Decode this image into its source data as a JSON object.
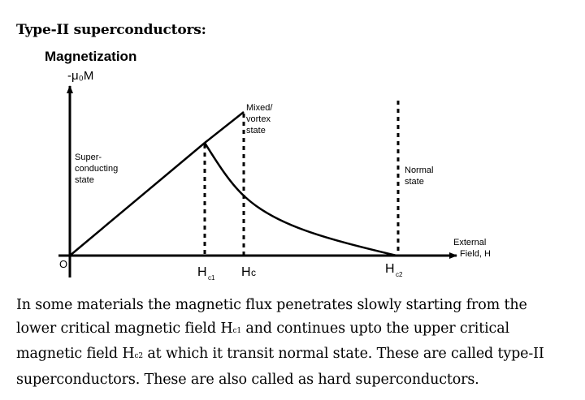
{
  "heading": "Type-II superconductors:",
  "diagram": {
    "title": "Magnetization",
    "y_axis_label": "-μ₀M",
    "x_axis_label_line1": "External",
    "x_axis_label_line2": "Field, H",
    "origin_label": "O",
    "regions": {
      "superconducting": [
        "Super-",
        "conducting",
        "state"
      ],
      "mixed": [
        "Mixed/",
        "vortex",
        "state"
      ],
      "normal": [
        "Normal",
        "state"
      ]
    },
    "ticks": {
      "hc1_main": "H",
      "hc1_sub": "c1",
      "hc_main": "H",
      "hc_sub": "c",
      "hc2_main": "H",
      "hc2_sub": "c2"
    },
    "line_color": "#000000"
  },
  "paragraph": {
    "line1": "In some materials the magnetic flux penetrates slowly starting from the",
    "line2_a": "lower critical magnetic field H",
    "line2_sub": "c1",
    "line2_b": " and continues upto the upper critical",
    "line3_a": "magnetic field H",
    "line3_sub": "c2",
    "line3_b": " at which it transit normal state. These are called type-II",
    "line4": "superconductors. These are also called as hard superconductors."
  }
}
